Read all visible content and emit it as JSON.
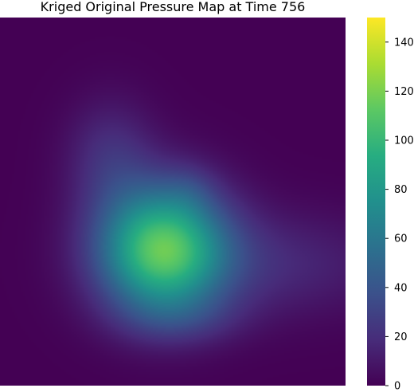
{
  "chart_data": {
    "type": "heatmap",
    "title": "Kriged Original Pressure Map at Time 756",
    "xlabel": "",
    "ylabel": "",
    "colormap": "viridis",
    "colorbar": {
      "range": [
        0,
        150
      ],
      "ticks": [
        0,
        20,
        40,
        60,
        80,
        100,
        120,
        140
      ]
    },
    "grid": false,
    "background_value": 0,
    "features": [
      {
        "label": "primary peak",
        "center": [
          0.47,
          0.63
        ],
        "spread": [
          0.13,
          0.12
        ],
        "value": 110
      },
      {
        "label": "upper-left arc",
        "center": [
          0.32,
          0.38
        ],
        "spread": [
          0.09,
          0.11
        ],
        "value": 20
      },
      {
        "label": "eastward plume",
        "center": [
          0.78,
          0.67
        ],
        "spread": [
          0.24,
          0.1
        ],
        "value": 17
      },
      {
        "label": "lower hook",
        "center": [
          0.52,
          0.82
        ],
        "spread": [
          0.13,
          0.05
        ],
        "value": 12
      },
      {
        "label": "arc tail",
        "center": [
          0.55,
          0.47
        ],
        "spread": [
          0.05,
          0.05
        ],
        "value": 8
      }
    ]
  }
}
